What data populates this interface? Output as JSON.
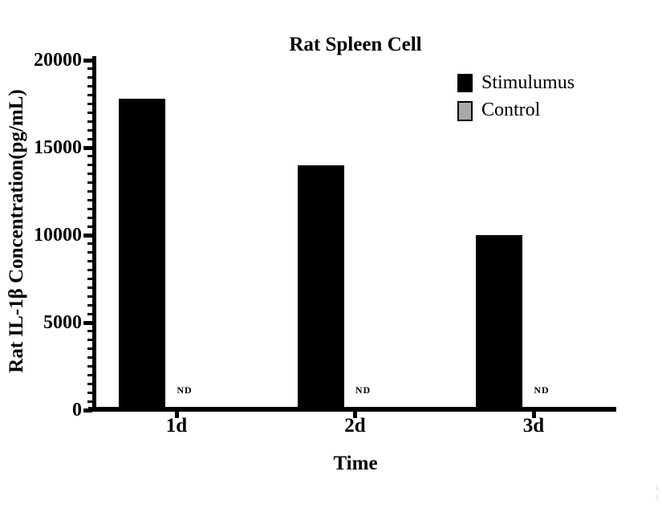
{
  "chart_data": {
    "type": "bar",
    "title": "Rat Spleen Cell",
    "xlabel": "Time",
    "ylabel": "Rat IL-1β Concentration(pg/mL)",
    "categories": [
      "1d",
      "2d",
      "3d"
    ],
    "series": [
      {
        "name": "Stimulumus",
        "color": "#000000",
        "values": [
          17800,
          14000,
          10000
        ]
      },
      {
        "name": "Control",
        "color": "#a9a9a9",
        "values": [
          null,
          null,
          null
        ],
        "value_labels": [
          "ND",
          "ND",
          "ND"
        ]
      }
    ],
    "ylim": [
      0,
      20000
    ],
    "yticks": [
      0,
      5000,
      10000,
      15000,
      20000
    ],
    "minor_tick_step": 500,
    "grid": false,
    "legend_position": "top-right",
    "not_detected_text": "ND"
  },
  "colors": {
    "bar_stimulumus": "#000000",
    "legend_control_fill": "#a9a9a9",
    "axis": "#000000",
    "background": "#ffffff"
  },
  "artifact": "ς\nς"
}
